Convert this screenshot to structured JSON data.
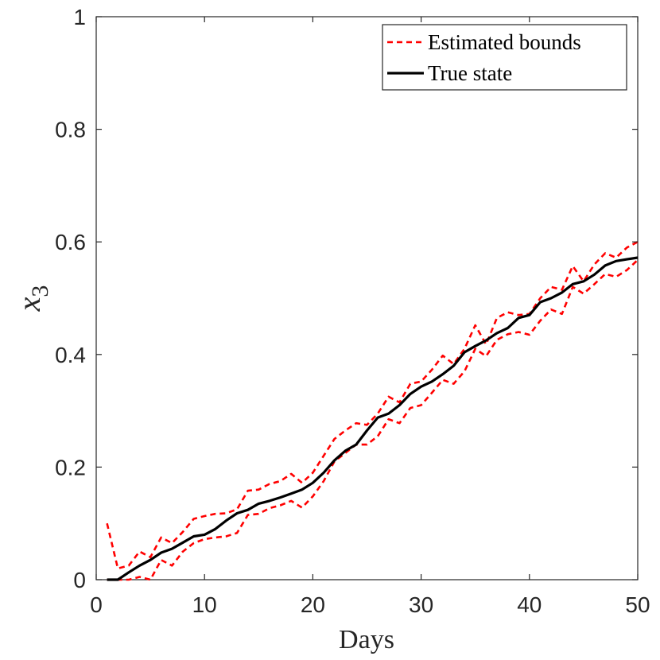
{
  "chart_data": {
    "type": "line",
    "xlabel": "Days",
    "ylabel": "x",
    "ylabel_subscript": "3",
    "xlim": [
      0,
      50
    ],
    "ylim": [
      0,
      1
    ],
    "xticks": [
      "0",
      "10",
      "20",
      "30",
      "40",
      "50"
    ],
    "yticks": [
      "0",
      "0.2",
      "0.4",
      "0.6",
      "0.8",
      "1"
    ],
    "grid": false,
    "legend_position": "top-right",
    "x": [
      1,
      2,
      3,
      4,
      5,
      6,
      7,
      8,
      9,
      10,
      11,
      12,
      13,
      14,
      15,
      16,
      17,
      18,
      19,
      20,
      21,
      22,
      23,
      24,
      25,
      26,
      27,
      28,
      29,
      30,
      31,
      32,
      33,
      34,
      35,
      36,
      37,
      38,
      39,
      40,
      41,
      42,
      43,
      44,
      45,
      46,
      47,
      48,
      49,
      50
    ],
    "series": [
      {
        "name": "Estimated bounds",
        "role": "upper",
        "color": "#ff0000",
        "style": "dashed",
        "values": [
          0.1,
          0.02,
          0.025,
          0.05,
          0.04,
          0.075,
          0.065,
          0.085,
          0.108,
          0.113,
          0.117,
          0.118,
          0.125,
          0.158,
          0.16,
          0.17,
          0.175,
          0.188,
          0.172,
          0.19,
          0.22,
          0.25,
          0.265,
          0.278,
          0.275,
          0.295,
          0.325,
          0.315,
          0.348,
          0.352,
          0.373,
          0.398,
          0.383,
          0.41,
          0.452,
          0.418,
          0.465,
          0.475,
          0.47,
          0.472,
          0.5,
          0.52,
          0.515,
          0.557,
          0.53,
          0.56,
          0.58,
          0.572,
          0.59,
          0.6
        ]
      },
      {
        "name": "Estimated bounds",
        "role": "lower",
        "color": "#ff0000",
        "style": "dashed",
        "values": [
          0.0,
          0.0,
          0.0,
          0.005,
          0.0,
          0.035,
          0.025,
          0.05,
          0.065,
          0.072,
          0.075,
          0.077,
          0.083,
          0.115,
          0.117,
          0.127,
          0.132,
          0.14,
          0.128,
          0.148,
          0.175,
          0.21,
          0.225,
          0.24,
          0.24,
          0.255,
          0.285,
          0.278,
          0.305,
          0.31,
          0.332,
          0.355,
          0.348,
          0.37,
          0.41,
          0.397,
          0.426,
          0.436,
          0.44,
          0.435,
          0.46,
          0.48,
          0.472,
          0.52,
          0.508,
          0.525,
          0.543,
          0.538,
          0.55,
          0.568
        ]
      },
      {
        "name": "True state",
        "role": "true",
        "color": "#000000",
        "style": "solid",
        "values": [
          0.0,
          0.0,
          0.013,
          0.025,
          0.035,
          0.048,
          0.055,
          0.066,
          0.077,
          0.08,
          0.09,
          0.105,
          0.118,
          0.124,
          0.135,
          0.14,
          0.146,
          0.153,
          0.16,
          0.172,
          0.19,
          0.212,
          0.229,
          0.24,
          0.265,
          0.288,
          0.295,
          0.31,
          0.33,
          0.343,
          0.352,
          0.365,
          0.38,
          0.404,
          0.415,
          0.425,
          0.438,
          0.447,
          0.465,
          0.47,
          0.493,
          0.5,
          0.51,
          0.525,
          0.53,
          0.542,
          0.558,
          0.566,
          0.569,
          0.572
        ]
      }
    ],
    "legend": [
      {
        "label": "Estimated bounds",
        "color": "#ff0000",
        "style": "dashed"
      },
      {
        "label": "True state",
        "color": "#000000",
        "style": "solid"
      }
    ]
  }
}
